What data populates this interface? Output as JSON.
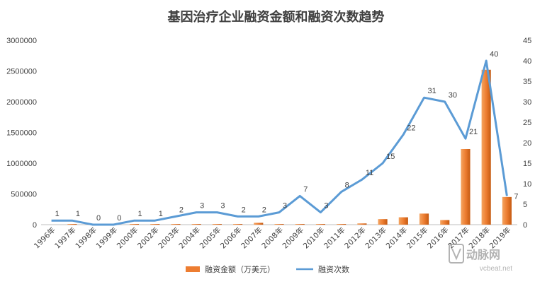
{
  "colors": {
    "bar": "#ED7D31",
    "line": "#5B9BD5",
    "axis": "#BFBFBF",
    "text": "#404040",
    "watermark": "#9A9A9A"
  },
  "watermark": {
    "line1": "动脉网",
    "line2": "vcbeat.net",
    "icon": "vb-logo-icon"
  },
  "chart_data": {
    "type": "bar",
    "title": "基因治疗企业融资金额和融资次数趋势",
    "categories": [
      "1996年",
      "1997年",
      "1998年",
      "1999年",
      "2000年",
      "2002年",
      "2003年",
      "2004年",
      "2005年",
      "2006年",
      "2007年",
      "2008年",
      "2009年",
      "2010年",
      "2011年",
      "2012年",
      "2013年",
      "2014年",
      "2015年",
      "2016年",
      "2017年",
      "2018年",
      "2019年"
    ],
    "series": [
      {
        "name": "融资金额（万美元）",
        "type": "bar",
        "axis": "left",
        "values": [
          0,
          2000,
          0,
          0,
          1000,
          3000,
          5000,
          5000,
          8000,
          2000,
          30000,
          5000,
          5000,
          6000,
          5000,
          20000,
          90000,
          120000,
          180000,
          75000,
          1230000,
          2520000,
          450000
        ]
      },
      {
        "name": "融资次数",
        "type": "line",
        "axis": "right",
        "values": [
          1,
          1,
          0,
          0,
          1,
          1,
          2,
          3,
          3,
          2,
          2,
          3,
          7,
          3,
          8,
          11,
          15,
          22,
          31,
          30,
          21,
          40,
          7
        ],
        "data_labels": true
      }
    ],
    "y_left": {
      "lim": [
        0,
        3000000
      ],
      "ticks": [
        "0",
        "500000",
        "1000000",
        "1500000",
        "2000000",
        "2500000",
        "3000000"
      ]
    },
    "y_right": {
      "lim": [
        0,
        45
      ],
      "ticks": [
        "0",
        "5",
        "10",
        "15",
        "20",
        "25",
        "30",
        "35",
        "40",
        "45"
      ]
    },
    "grid": false,
    "legend_position": "bottom"
  }
}
